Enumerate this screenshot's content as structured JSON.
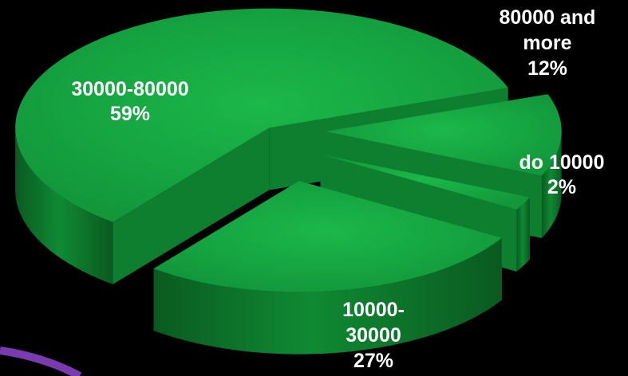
{
  "chart_data": {
    "type": "pie",
    "style": "3d-exploded",
    "slices": [
      {
        "label_lines": [
          "30000-80000",
          "59%"
        ],
        "value": 59
      },
      {
        "label_lines": [
          "80000 and",
          "more",
          "12%"
        ],
        "value": 12
      },
      {
        "label_lines": [
          "do 10000",
          "2%"
        ],
        "value": 2
      },
      {
        "label_lines": [
          "10000-",
          "30000",
          "27%"
        ],
        "value": 27
      }
    ],
    "legend": "none"
  },
  "colors": {
    "background": "#000000",
    "slice_top": "#16a640",
    "slice_side": "#0b6b27",
    "slice_inner_wall": "#0e7f2f",
    "label_text": "#ffffff",
    "corner_arc": "#7a3bb0"
  }
}
